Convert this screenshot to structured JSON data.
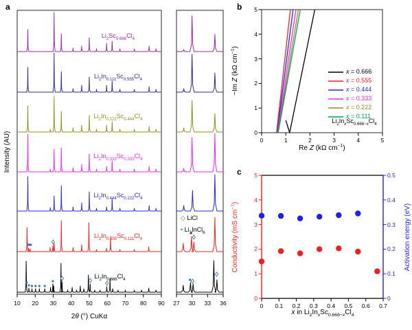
{
  "figure": {
    "panel_a_label": "a",
    "panel_b_label": "b",
    "panel_c_label": "c"
  },
  "impurity_marker_color": "#3f72af",
  "frame_color": "#4a4a4a",
  "chart_data": [
    {
      "panel": "a",
      "type": "line",
      "description": "Stacked XRD patterns (intensity vs 2-theta) with zoomed inset 27-36 degrees",
      "xlabel": "2*θ* (°) CuKα",
      "ylabel": "Intensity (AU)",
      "main_xlim": [
        10,
        90
      ],
      "main_xtick_labels": [
        "10",
        "20",
        "30",
        "40",
        "50",
        "60",
        "70",
        "80",
        "90"
      ],
      "inset_xlim": [
        27,
        36
      ],
      "inset_xtick_labels": [
        "27",
        "30",
        "33",
        "36"
      ],
      "impurity_legend": [
        {
          "marker": "diamond",
          "label": "LiCl"
        },
        {
          "marker": "dot",
          "label": "Li_{3}InCl_{6}"
        }
      ],
      "traces": [
        {
          "label": "Li_{2}Sc_{0.666}Cl_{4}",
          "color": "#9e28a2",
          "peaks": [
            [
              15.9,
              32
            ],
            [
              30.5,
              57
            ],
            [
              34.5,
              26
            ],
            [
              41,
              5
            ],
            [
              45.8,
              8
            ],
            [
              50,
              20
            ],
            [
              54,
              4
            ],
            [
              59.6,
              12
            ],
            [
              62.7,
              15
            ],
            [
              67,
              4
            ],
            [
              75,
              4
            ],
            [
              83.2,
              8
            ],
            [
              87,
              4
            ]
          ],
          "inset_peaks": [
            [
              28.4,
              3
            ],
            [
              30,
              52
            ],
            [
              34.4,
              25
            ]
          ]
        },
        {
          "label": "Li_{2}In_{0.111}Sc_{0.555}Cl_{4}",
          "color": "#2b2ba6",
          "peaks": [
            [
              15.9,
              36
            ],
            [
              30.5,
              57
            ],
            [
              34.5,
              30
            ],
            [
              41,
              5
            ],
            [
              45.8,
              10
            ],
            [
              50,
              22
            ],
            [
              54,
              4
            ],
            [
              59.6,
              10
            ],
            [
              62.7,
              16
            ],
            [
              67,
              4
            ],
            [
              75,
              4
            ],
            [
              83.2,
              8
            ],
            [
              87,
              4
            ]
          ],
          "inset_peaks": [
            [
              28.4,
              5
            ],
            [
              30,
              55
            ],
            [
              34.4,
              28
            ]
          ]
        },
        {
          "label": "Li_{2}In_{0.222}Sc_{0.444}Cl_{4}",
          "color": "#8f8f20",
          "peaks": [
            [
              15.9,
              38
            ],
            [
              28.4,
              4
            ],
            [
              30.5,
              52
            ],
            [
              34.5,
              30
            ],
            [
              41,
              6
            ],
            [
              45.8,
              10
            ],
            [
              50,
              24
            ],
            [
              54,
              4
            ],
            [
              59.6,
              10
            ],
            [
              62.7,
              15
            ],
            [
              67,
              4
            ],
            [
              75,
              4
            ],
            [
              83.2,
              8
            ],
            [
              87,
              4
            ]
          ],
          "inset_peaks": [
            [
              28.4,
              6
            ],
            [
              30,
              46
            ],
            [
              34.4,
              27
            ]
          ]
        },
        {
          "label": "Li_{2}In_{0.333}Sc_{0.333}Cl_{4}",
          "color": "#f823f8",
          "peaks": [
            [
              15.9,
              55
            ],
            [
              28.4,
              4
            ],
            [
              30.5,
              33
            ],
            [
              34.5,
              35
            ],
            [
              41,
              6
            ],
            [
              45.8,
              11
            ],
            [
              50,
              26
            ],
            [
              54,
              4
            ],
            [
              59.6,
              8
            ],
            [
              62.7,
              16
            ],
            [
              67,
              4
            ],
            [
              75,
              4
            ],
            [
              83.2,
              8
            ],
            [
              87,
              4
            ]
          ],
          "inset_peaks": [
            [
              28.4,
              5
            ],
            [
              30,
              50
            ],
            [
              34.4,
              56
            ]
          ]
        },
        {
          "label": "Li_{2}In_{0.444}Sc_{0.222}Cl_{4}",
          "color": "#2525f0",
          "peaks": [
            [
              15.9,
              50
            ],
            [
              28.4,
              5
            ],
            [
              30.5,
              22
            ],
            [
              34.5,
              37
            ],
            [
              41,
              6
            ],
            [
              45.8,
              12
            ],
            [
              50,
              28
            ],
            [
              54,
              4
            ],
            [
              59.6,
              6
            ],
            [
              62.7,
              18
            ],
            [
              67,
              4
            ],
            [
              75,
              4
            ],
            [
              83.2,
              8
            ],
            [
              87,
              4
            ]
          ],
          "inset_peaks": [
            [
              28.4,
              8
            ],
            [
              30.1,
              30
            ],
            [
              34.4,
              53
            ]
          ]
        },
        {
          "label": "Li_{2}In_{0.555}Sc_{0.111}Cl_{4}",
          "color": "#f52020",
          "peaks": [
            [
              15.5,
              35
            ],
            [
              16.4,
              5
            ],
            [
              17.2,
              4
            ],
            [
              28.3,
              6
            ],
            [
              29.8,
              9
            ],
            [
              30.5,
              14
            ],
            [
              34.5,
              45
            ],
            [
              41,
              6
            ],
            [
              45.8,
              10
            ],
            [
              49.8,
              42
            ],
            [
              54,
              3
            ],
            [
              59.6,
              5
            ],
            [
              61.8,
              22
            ],
            [
              67,
              3
            ],
            [
              75,
              3
            ],
            [
              83,
              7
            ]
          ],
          "inset_peaks": [
            [
              28.3,
              12
            ],
            [
              29.9,
              22
            ],
            [
              30.35,
              14
            ],
            [
              34.4,
              50
            ]
          ],
          "dots": [
            [
              16,
              10
            ],
            [
              16.8,
              10
            ],
            [
              17.6,
              10
            ]
          ],
          "diamonds": [
            [
              29.9,
              14
            ]
          ],
          "inset_dots": [
            [
              29.85,
              27
            ]
          ],
          "inset_diamonds": [
            [
              30.35,
              21
            ]
          ]
        },
        {
          "label": "Li_{2}In_{0.666}Cl_{4}",
          "color": "#000000",
          "peaks": [
            [
              15,
              45
            ],
            [
              16.5,
              6
            ],
            [
              18.2,
              5
            ],
            [
              20.2,
              5
            ],
            [
              22.3,
              5
            ],
            [
              25.3,
              5
            ],
            [
              28.5,
              7
            ],
            [
              29.8,
              12
            ],
            [
              30.3,
              9
            ],
            [
              34.3,
              42
            ],
            [
              34.9,
              15
            ],
            [
              38,
              3
            ],
            [
              40.5,
              7
            ],
            [
              43,
              3
            ],
            [
              45,
              9
            ],
            [
              47,
              5
            ],
            [
              49.5,
              25
            ],
            [
              50.5,
              12
            ],
            [
              53,
              3
            ],
            [
              56,
              3
            ],
            [
              59.7,
              8
            ],
            [
              61.5,
              20
            ],
            [
              63,
              5
            ],
            [
              66,
              3
            ],
            [
              70,
              3
            ],
            [
              75,
              3
            ],
            [
              79,
              3
            ],
            [
              83,
              6
            ],
            [
              87,
              3
            ]
          ],
          "inset_peaks": [
            [
              28.3,
              10
            ],
            [
              29.7,
              14
            ],
            [
              30.2,
              12
            ],
            [
              34.2,
              46
            ],
            [
              34.8,
              18
            ]
          ],
          "dots": [
            [
              15.3,
              14
            ],
            [
              16.5,
              10
            ],
            [
              18.2,
              9
            ],
            [
              20.2,
              9
            ],
            [
              22.3,
              9
            ],
            [
              25.3,
              9
            ],
            [
              29.8,
              16
            ]
          ],
          "diamonds": [
            [
              34.9,
              20
            ],
            [
              50.5,
              17
            ],
            [
              59.8,
              13
            ]
          ],
          "inset_dots": [
            [
              29.6,
              18
            ]
          ],
          "inset_diamonds": [
            [
              30.1,
              16
            ],
            [
              34.75,
              26
            ]
          ]
        }
      ]
    },
    {
      "panel": "b",
      "type": "line",
      "description": "Nyquist impedance plot",
      "xlabel": "Re *Z* (kΩ cm^{−1})",
      "ylabel": "−Im *Z* (kΩ cm^{−1})",
      "xlim": [
        0,
        5
      ],
      "ylim": [
        0,
        5
      ],
      "xtick_labels": [
        "0",
        "1",
        "2",
        "3",
        "4",
        "5"
      ],
      "ytick_labels": [
        "0",
        "1",
        "2",
        "3",
        "4",
        "5"
      ],
      "series": [
        {
          "name": "*x* = 0.666",
          "color": "#000000",
          "points": [
            [
              1.0,
              0.5
            ],
            [
              1.16,
              0
            ],
            [
              2.2,
              5
            ]
          ]
        },
        {
          "name": "*x* = 0.555",
          "color": "#f52020",
          "points": [
            [
              0.62,
              0
            ],
            [
              1.19,
              5
            ]
          ]
        },
        {
          "name": "*x* = 0.444",
          "color": "#2525f0",
          "points": [
            [
              0.64,
              0
            ],
            [
              1.3,
              5
            ]
          ]
        },
        {
          "name": "*x* = 0.333",
          "color": "#f823f8",
          "points": [
            [
              0.655,
              0
            ],
            [
              1.42,
              5
            ]
          ]
        },
        {
          "name": "*x* = 0.222",
          "color": "#8f8f20",
          "points": [
            [
              0.67,
              0
            ],
            [
              1.52,
              5
            ]
          ]
        },
        {
          "name": "*x* = 0.111",
          "color": "#00a14f",
          "points": [
            [
              0.685,
              0
            ],
            [
              1.6,
              5
            ]
          ]
        }
      ],
      "legend_note": "Li_{2}In_{*x*}Sc_{0.666−*x*}Cl_{4}"
    },
    {
      "panel": "c",
      "type": "scatter",
      "description": "Conductivity and activation energy vs composition x",
      "xlabel": "*x* in Li_{2}In_{*x*}Sc_{0.666−*x*}Cl_{4}",
      "ylabel_left": "Conductivity (mS cm^{−1})",
      "ylabel_right": "Activation energy (eV)",
      "xlim": [
        0,
        0.7
      ],
      "xtick_labels": [
        "0",
        "0.1",
        "0.2",
        "0.3",
        "0.4",
        "0.5",
        "0.6",
        "0.7"
      ],
      "ylim_left": [
        0,
        5
      ],
      "ytick_labels_left": [
        "0",
        "1",
        "2",
        "3",
        "4",
        "5"
      ],
      "ylim_right": [
        0,
        0.5
      ],
      "ytick_labels_right": [
        "0",
        "0.1",
        "0.2",
        "0.3",
        "0.4",
        "0.5"
      ],
      "series": [
        {
          "name": "conductivity",
          "axis": "left",
          "color": "#f51d1d",
          "x": [
            0,
            0.111,
            0.222,
            0.333,
            0.444,
            0.555,
            0.666
          ],
          "y": [
            1.5,
            1.92,
            1.83,
            2.0,
            2.03,
            1.9,
            1.1
          ]
        },
        {
          "name": "activation-energy",
          "axis": "right",
          "color": "#1e1ef5",
          "x": [
            0,
            0.111,
            0.222,
            0.333,
            0.444,
            0.555
          ],
          "y": [
            0.336,
            0.335,
            0.325,
            0.332,
            0.338,
            0.345
          ]
        }
      ]
    }
  ]
}
